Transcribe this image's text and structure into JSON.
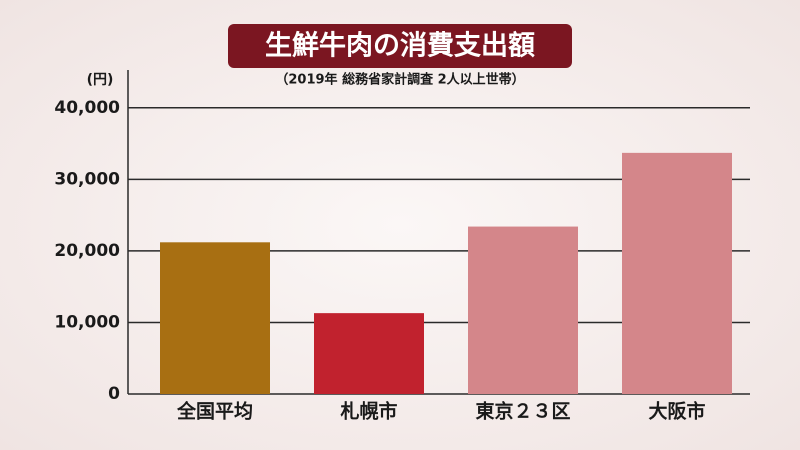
{
  "chart_data": {
    "type": "bar",
    "title": "生鮮牛肉の消費支出額",
    "subtitle": "（2019年 総務省家計調査 2人以上世帯）",
    "y_label": "(円)",
    "categories": [
      "全国平均",
      "札幌市",
      "東京２３区",
      "大阪市"
    ],
    "values": [
      21200,
      11300,
      23400,
      33700
    ],
    "colors": [
      "#a86f12",
      "#c1222e",
      "#d4868a",
      "#d4868a"
    ],
    "ylim": [
      0,
      45000
    ],
    "yticks": [
      0,
      {
        "value": 10000,
        "label": "10,000"
      },
      {
        "value": 20000,
        "label": "20,000"
      },
      {
        "value": 30000,
        "label": "30,000"
      },
      {
        "value": 40000,
        "label": "40,000"
      }
    ],
    "grid": true
  }
}
